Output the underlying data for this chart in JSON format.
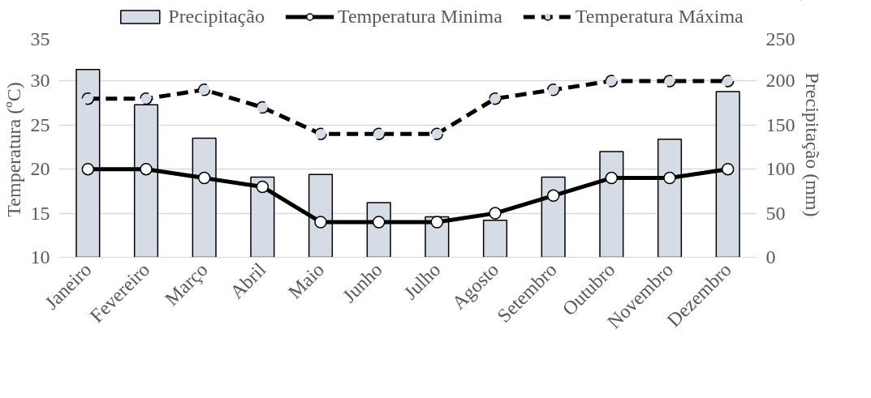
{
  "chart_data": {
    "type": "line",
    "categories": [
      "Janeiro",
      "Fevereiro",
      "Março",
      "Abril",
      "Maio",
      "Junho",
      "Julho",
      "Agosto",
      "Setembro",
      "Outubro",
      "Novembro",
      "Dezembro"
    ],
    "ylabel": "Temperatura  (ºC)",
    "y2label": "Precipitação  (mm)",
    "ylim": [
      10,
      35
    ],
    "yticks": [
      10,
      15,
      20,
      25,
      30,
      35
    ],
    "y2lim": [
      0,
      250
    ],
    "y2ticks": [
      0,
      50,
      100,
      150,
      200,
      250
    ],
    "series": [
      {
        "name": "Precipitação",
        "type": "bar",
        "axis": "y2",
        "color": "#d6dce5",
        "values": [
          213,
          173,
          135,
          91,
          94,
          62,
          46,
          42,
          91,
          120,
          134,
          188
        ]
      },
      {
        "name": "Temperatura Minima",
        "color": "#000000",
        "line_style": "solid",
        "values": [
          20,
          20,
          19,
          18,
          14,
          14,
          14,
          15,
          17,
          19,
          19,
          20
        ]
      },
      {
        "name": "Temperatura Máxima",
        "color": "#000000",
        "line_style": "dashed",
        "values": [
          28,
          28,
          29,
          27,
          24,
          24,
          24,
          28,
          29,
          30,
          30,
          30
        ]
      }
    ],
    "marker": "circle",
    "grid": "y",
    "legend": "top"
  }
}
